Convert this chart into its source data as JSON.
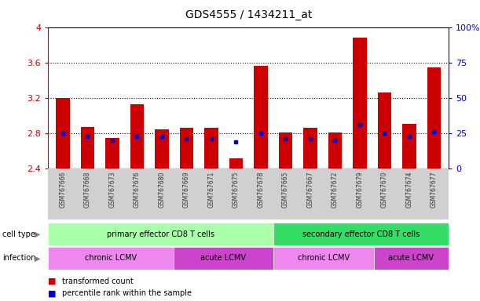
{
  "title": "GDS4555 / 1434211_at",
  "samples": [
    "GSM767666",
    "GSM767668",
    "GSM767673",
    "GSM767676",
    "GSM767680",
    "GSM767669",
    "GSM767671",
    "GSM767675",
    "GSM767678",
    "GSM767665",
    "GSM767667",
    "GSM767672",
    "GSM767679",
    "GSM767670",
    "GSM767674",
    "GSM767677"
  ],
  "bar_values": [
    3.2,
    2.87,
    2.75,
    3.13,
    2.84,
    2.86,
    2.86,
    2.52,
    3.56,
    2.81,
    2.86,
    2.81,
    3.88,
    3.26,
    2.91,
    3.54
  ],
  "percentile_values": [
    2.8,
    2.76,
    2.72,
    2.76,
    2.76,
    2.74,
    2.74,
    2.7,
    2.8,
    2.74,
    2.74,
    2.72,
    2.9,
    2.8,
    2.76,
    2.82
  ],
  "ylim_left": [
    2.4,
    4.0
  ],
  "yticks_left": [
    2.4,
    2.8,
    3.2,
    3.6,
    4.0
  ],
  "ytick_labels_left": [
    "2.4",
    "2.8",
    "3.2",
    "3.6",
    "4"
  ],
  "yticks_right_pct": [
    0,
    25,
    50,
    75,
    100
  ],
  "ytick_labels_right": [
    "0",
    "25",
    "50",
    "75",
    "100%"
  ],
  "bar_color": "#cc0000",
  "blue_color": "#0000cc",
  "left_axis_color": "#cc0000",
  "right_axis_color": "#0000cc",
  "cell_type_groups": [
    {
      "label": "primary effector CD8 T cells",
      "start": 0,
      "end": 8,
      "color": "#aaffaa"
    },
    {
      "label": "secondary effector CD8 T cells",
      "start": 9,
      "end": 15,
      "color": "#33dd66"
    }
  ],
  "infection_groups": [
    {
      "label": "chronic LCMV",
      "start": 0,
      "end": 4,
      "color": "#ee88ee"
    },
    {
      "label": "acute LCMV",
      "start": 5,
      "end": 8,
      "color": "#cc44cc"
    },
    {
      "label": "chronic LCMV",
      "start": 9,
      "end": 12,
      "color": "#ee88ee"
    },
    {
      "label": "acute LCMV",
      "start": 13,
      "end": 15,
      "color": "#cc44cc"
    }
  ],
  "legend_items": [
    {
      "label": "transformed count",
      "color": "#cc0000"
    },
    {
      "label": "percentile rank within the sample",
      "color": "#0000cc"
    }
  ],
  "bg_color": "#ffffff"
}
